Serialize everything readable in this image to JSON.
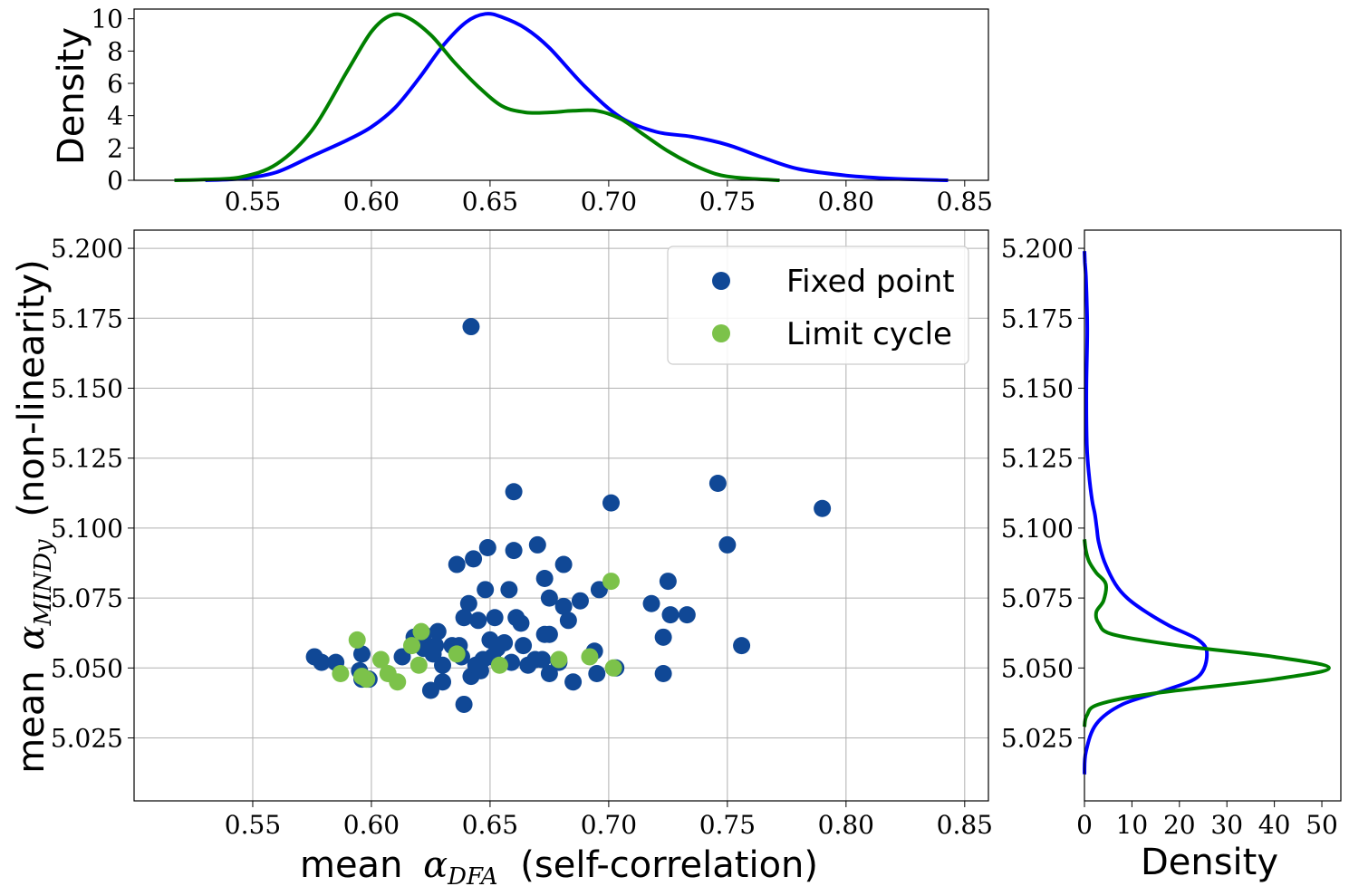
{
  "chart_data": [
    {
      "type": "scatter",
      "panel": "main",
      "xlabel_text": "mean",
      "xlabel_symbol": "α",
      "xlabel_sub": "DFA",
      "xlabel_suffix": "(self-correlation)",
      "ylabel_text": "mean",
      "ylabel_symbol": "α",
      "ylabel_sub": "MINDy",
      "ylabel_suffix": "(non-linearity)",
      "xlim": [
        0.5,
        0.86
      ],
      "ylim": [
        5.0025,
        5.2065
      ],
      "xticks": [
        "0.55",
        "0.60",
        "0.65",
        "0.70",
        "0.75",
        "0.80",
        "0.85"
      ],
      "yticks": [
        "5.025",
        "5.050",
        "5.075",
        "5.100",
        "5.125",
        "5.150",
        "5.175",
        "5.200"
      ],
      "grid": true,
      "legend_position": "upper-right",
      "series": [
        {
          "name": "Fixed point",
          "color": "#104896",
          "points": [
            [
              0.576,
              5.054
            ],
            [
              0.579,
              5.052
            ],
            [
              0.585,
              5.052
            ],
            [
              0.595,
              5.049
            ],
            [
              0.596,
              5.055
            ],
            [
              0.596,
              5.046
            ],
            [
              0.599,
              5.046
            ],
            [
              0.613,
              5.054
            ],
            [
              0.618,
              5.061
            ],
            [
              0.622,
              5.057
            ],
            [
              0.622,
              5.062
            ],
            [
              0.625,
              5.042
            ],
            [
              0.626,
              5.055
            ],
            [
              0.627,
              5.058
            ],
            [
              0.628,
              5.063
            ],
            [
              0.63,
              5.045
            ],
            [
              0.63,
              5.051
            ],
            [
              0.634,
              5.058
            ],
            [
              0.636,
              5.087
            ],
            [
              0.637,
              5.058
            ],
            [
              0.638,
              5.054
            ],
            [
              0.639,
              5.037
            ],
            [
              0.639,
              5.068
            ],
            [
              0.641,
              5.073
            ],
            [
              0.642,
              5.172
            ],
            [
              0.642,
              5.047
            ],
            [
              0.643,
              5.089
            ],
            [
              0.644,
              5.051
            ],
            [
              0.645,
              5.067
            ],
            [
              0.646,
              5.049
            ],
            [
              0.647,
              5.053
            ],
            [
              0.648,
              5.078
            ],
            [
              0.649,
              5.093
            ],
            [
              0.65,
              5.06
            ],
            [
              0.651,
              5.054
            ],
            [
              0.652,
              5.068
            ],
            [
              0.653,
              5.057
            ],
            [
              0.656,
              5.059
            ],
            [
              0.658,
              5.078
            ],
            [
              0.659,
              5.052
            ],
            [
              0.66,
              5.113
            ],
            [
              0.66,
              5.092
            ],
            [
              0.661,
              5.068
            ],
            [
              0.663,
              5.066
            ],
            [
              0.664,
              5.058
            ],
            [
              0.666,
              5.051
            ],
            [
              0.669,
              5.053
            ],
            [
              0.67,
              5.094
            ],
            [
              0.672,
              5.053
            ],
            [
              0.673,
              5.082
            ],
            [
              0.673,
              5.062
            ],
            [
              0.675,
              5.048
            ],
            [
              0.675,
              5.062
            ],
            [
              0.675,
              5.075
            ],
            [
              0.679,
              5.052
            ],
            [
              0.681,
              5.087
            ],
            [
              0.681,
              5.072
            ],
            [
              0.683,
              5.067
            ],
            [
              0.685,
              5.045
            ],
            [
              0.688,
              5.074
            ],
            [
              0.694,
              5.056
            ],
            [
              0.695,
              5.048
            ],
            [
              0.696,
              5.078
            ],
            [
              0.701,
              5.109
            ],
            [
              0.703,
              5.05
            ],
            [
              0.718,
              5.073
            ],
            [
              0.723,
              5.061
            ],
            [
              0.723,
              5.048
            ],
            [
              0.725,
              5.081
            ],
            [
              0.726,
              5.069
            ],
            [
              0.733,
              5.069
            ],
            [
              0.746,
              5.116
            ],
            [
              0.75,
              5.094
            ],
            [
              0.756,
              5.058
            ],
            [
              0.79,
              5.107
            ]
          ]
        },
        {
          "name": "Limit cycle",
          "color": "#7cc24a",
          "points": [
            [
              0.587,
              5.048
            ],
            [
              0.594,
              5.06
            ],
            [
              0.596,
              5.047
            ],
            [
              0.598,
              5.046
            ],
            [
              0.604,
              5.053
            ],
            [
              0.607,
              5.048
            ],
            [
              0.611,
              5.045
            ],
            [
              0.617,
              5.058
            ],
            [
              0.62,
              5.051
            ],
            [
              0.621,
              5.063
            ],
            [
              0.636,
              5.055
            ],
            [
              0.654,
              5.051
            ],
            [
              0.679,
              5.053
            ],
            [
              0.692,
              5.054
            ],
            [
              0.701,
              5.081
            ],
            [
              0.702,
              5.05
            ]
          ]
        }
      ]
    },
    {
      "type": "line",
      "panel": "top-marginal",
      "ylabel": "Density",
      "xlim": [
        0.5,
        0.86
      ],
      "ylim": [
        0,
        10.6
      ],
      "xticks": [
        "0.55",
        "0.60",
        "0.65",
        "0.70",
        "0.75",
        "0.80",
        "0.85"
      ],
      "yticks": [
        "0",
        "2",
        "4",
        "6",
        "8",
        "10"
      ],
      "grid": false,
      "series": [
        {
          "color": "#0000ff",
          "x": [
            0.53,
            0.545,
            0.56,
            0.575,
            0.59,
            0.6,
            0.61,
            0.62,
            0.63,
            0.64,
            0.648,
            0.655,
            0.665,
            0.675,
            0.69,
            0.705,
            0.72,
            0.735,
            0.75,
            0.765,
            0.78,
            0.8,
            0.82,
            0.843
          ],
          "y": [
            0.0,
            0.1,
            0.5,
            1.5,
            2.5,
            3.3,
            4.5,
            6.3,
            8.3,
            9.8,
            10.3,
            10.1,
            9.4,
            8.2,
            5.8,
            3.9,
            3.0,
            2.7,
            2.2,
            1.4,
            0.7,
            0.3,
            0.1,
            0.0
          ]
        },
        {
          "color": "#008000",
          "x": [
            0.517,
            0.53,
            0.545,
            0.56,
            0.575,
            0.59,
            0.6,
            0.608,
            0.615,
            0.625,
            0.635,
            0.645,
            0.655,
            0.665,
            0.675,
            0.685,
            0.695,
            0.705,
            0.715,
            0.725,
            0.735,
            0.745,
            0.755,
            0.772
          ],
          "y": [
            0.0,
            0.05,
            0.2,
            1.0,
            3.1,
            6.8,
            9.2,
            10.2,
            10.1,
            9.0,
            7.3,
            5.8,
            4.6,
            4.2,
            4.2,
            4.3,
            4.3,
            3.8,
            2.8,
            1.8,
            1.0,
            0.4,
            0.15,
            0.0
          ]
        }
      ]
    },
    {
      "type": "line",
      "panel": "right-marginal",
      "xlabel": "Density",
      "xlim": [
        0,
        54
      ],
      "ylim": [
        5.0025,
        5.2065
      ],
      "xticks": [
        "0",
        "10",
        "20",
        "30",
        "40",
        "50"
      ],
      "yticks": [
        "5.025",
        "5.050",
        "5.075",
        "5.100",
        "5.125",
        "5.150",
        "5.175",
        "5.200"
      ],
      "grid": false,
      "series": [
        {
          "color": "#0000ff",
          "density": [
            0.0,
            0.3,
            2.5,
            8.0,
            17.0,
            24.0,
            25.8,
            24.0,
            18.0,
            13.0,
            9.0,
            6.5,
            4.2,
            3.0,
            2.6,
            2.2,
            1.6,
            0.9,
            0.5,
            0.4,
            0.6,
            0.5,
            0.3,
            0.1,
            0.0
          ],
          "y": [
            5.012,
            5.02,
            5.03,
            5.037,
            5.042,
            5.047,
            5.055,
            5.06,
            5.065,
            5.07,
            5.075,
            5.08,
            5.088,
            5.095,
            5.1,
            5.105,
            5.11,
            5.12,
            5.13,
            5.15,
            5.17,
            5.18,
            5.19,
            5.195,
            5.199
          ]
        },
        {
          "color": "#008000",
          "density": [
            0.0,
            0.5,
            3.0,
            15.0,
            40.0,
            51.5,
            40.0,
            20.0,
            6.0,
            3.0,
            2.5,
            4.0,
            4.5,
            2.5,
            1.0,
            0.3,
            0.0
          ],
          "y": [
            5.029,
            5.033,
            5.037,
            5.041,
            5.046,
            5.05,
            5.054,
            5.058,
            5.062,
            5.066,
            5.07,
            5.074,
            5.08,
            5.084,
            5.088,
            5.092,
            5.096
          ]
        }
      ]
    }
  ]
}
